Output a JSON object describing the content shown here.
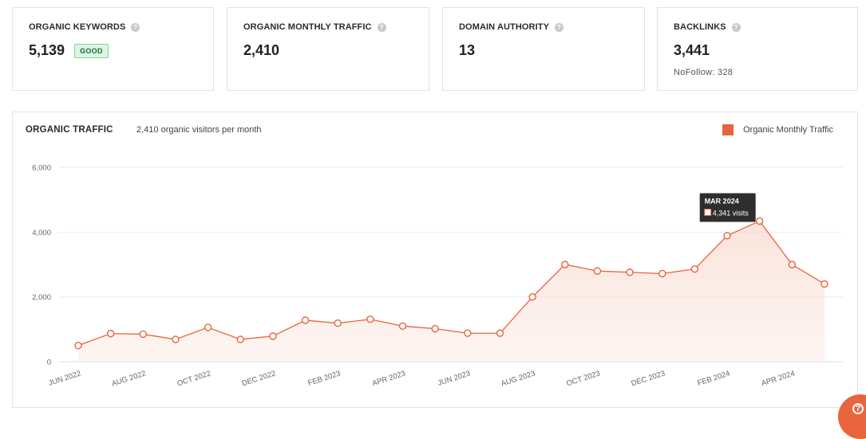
{
  "cards": [
    {
      "title": "ORGANIC KEYWORDS",
      "value": "5,139",
      "badge": "GOOD",
      "sub": ""
    },
    {
      "title": "ORGANIC MONTHLY TRAFFIC",
      "value": "2,410",
      "badge": "",
      "sub": ""
    },
    {
      "title": "DOMAIN AUTHORITY",
      "value": "13",
      "badge": "",
      "sub": ""
    },
    {
      "title": "BACKLINKS",
      "value": "3,441",
      "badge": "",
      "sub": "NoFollow: 328"
    }
  ],
  "help_glyph": "?",
  "colors": {
    "accent": "#e8643c",
    "good_bg": "#dcf5e4",
    "good_border": "#7fd39c"
  },
  "chart_data": {
    "type": "area",
    "title": "ORGANIC TRAFFIC",
    "subtitle": "2,410 organic visitors per month",
    "legend": "Organic Monthly Traffic",
    "legend_position": "top-right",
    "ylim": [
      0,
      6000
    ],
    "yticks": [
      "0",
      "2,000",
      "4,000",
      "6,000"
    ],
    "ytick_values": [
      0,
      2000,
      4000,
      6000
    ],
    "xtick_labels": [
      "JUN 2022",
      "AUG 2022",
      "OCT 2022",
      "DEC 2022",
      "FEB 2023",
      "APR 2023",
      "JUN 2023",
      "AUG 2023",
      "OCT 2023",
      "DEC 2023",
      "FEB 2024",
      "APR 2024"
    ],
    "x": [
      "JUN 2022",
      "JUL 2022",
      "AUG 2022",
      "SEP 2022",
      "OCT 2022",
      "NOV 2022",
      "DEC 2022",
      "JAN 2023",
      "FEB 2023",
      "MAR 2023",
      "APR 2023",
      "MAY 2023",
      "JUN 2023",
      "JUL 2023",
      "AUG 2023",
      "SEP 2023",
      "OCT 2023",
      "NOV 2023",
      "DEC 2023",
      "JAN 2024",
      "FEB 2024",
      "MAR 2024",
      "APR 2024",
      "MAY 2024"
    ],
    "values": [
      500,
      870,
      850,
      690,
      1060,
      690,
      790,
      1280,
      1190,
      1310,
      1100,
      1020,
      880,
      880,
      2000,
      3000,
      2800,
      2760,
      2720,
      2860,
      3890,
      4341,
      3000,
      2400
    ],
    "tooltip": {
      "month": "MAR 2024",
      "text": "4,341 visits",
      "index": 21
    }
  }
}
